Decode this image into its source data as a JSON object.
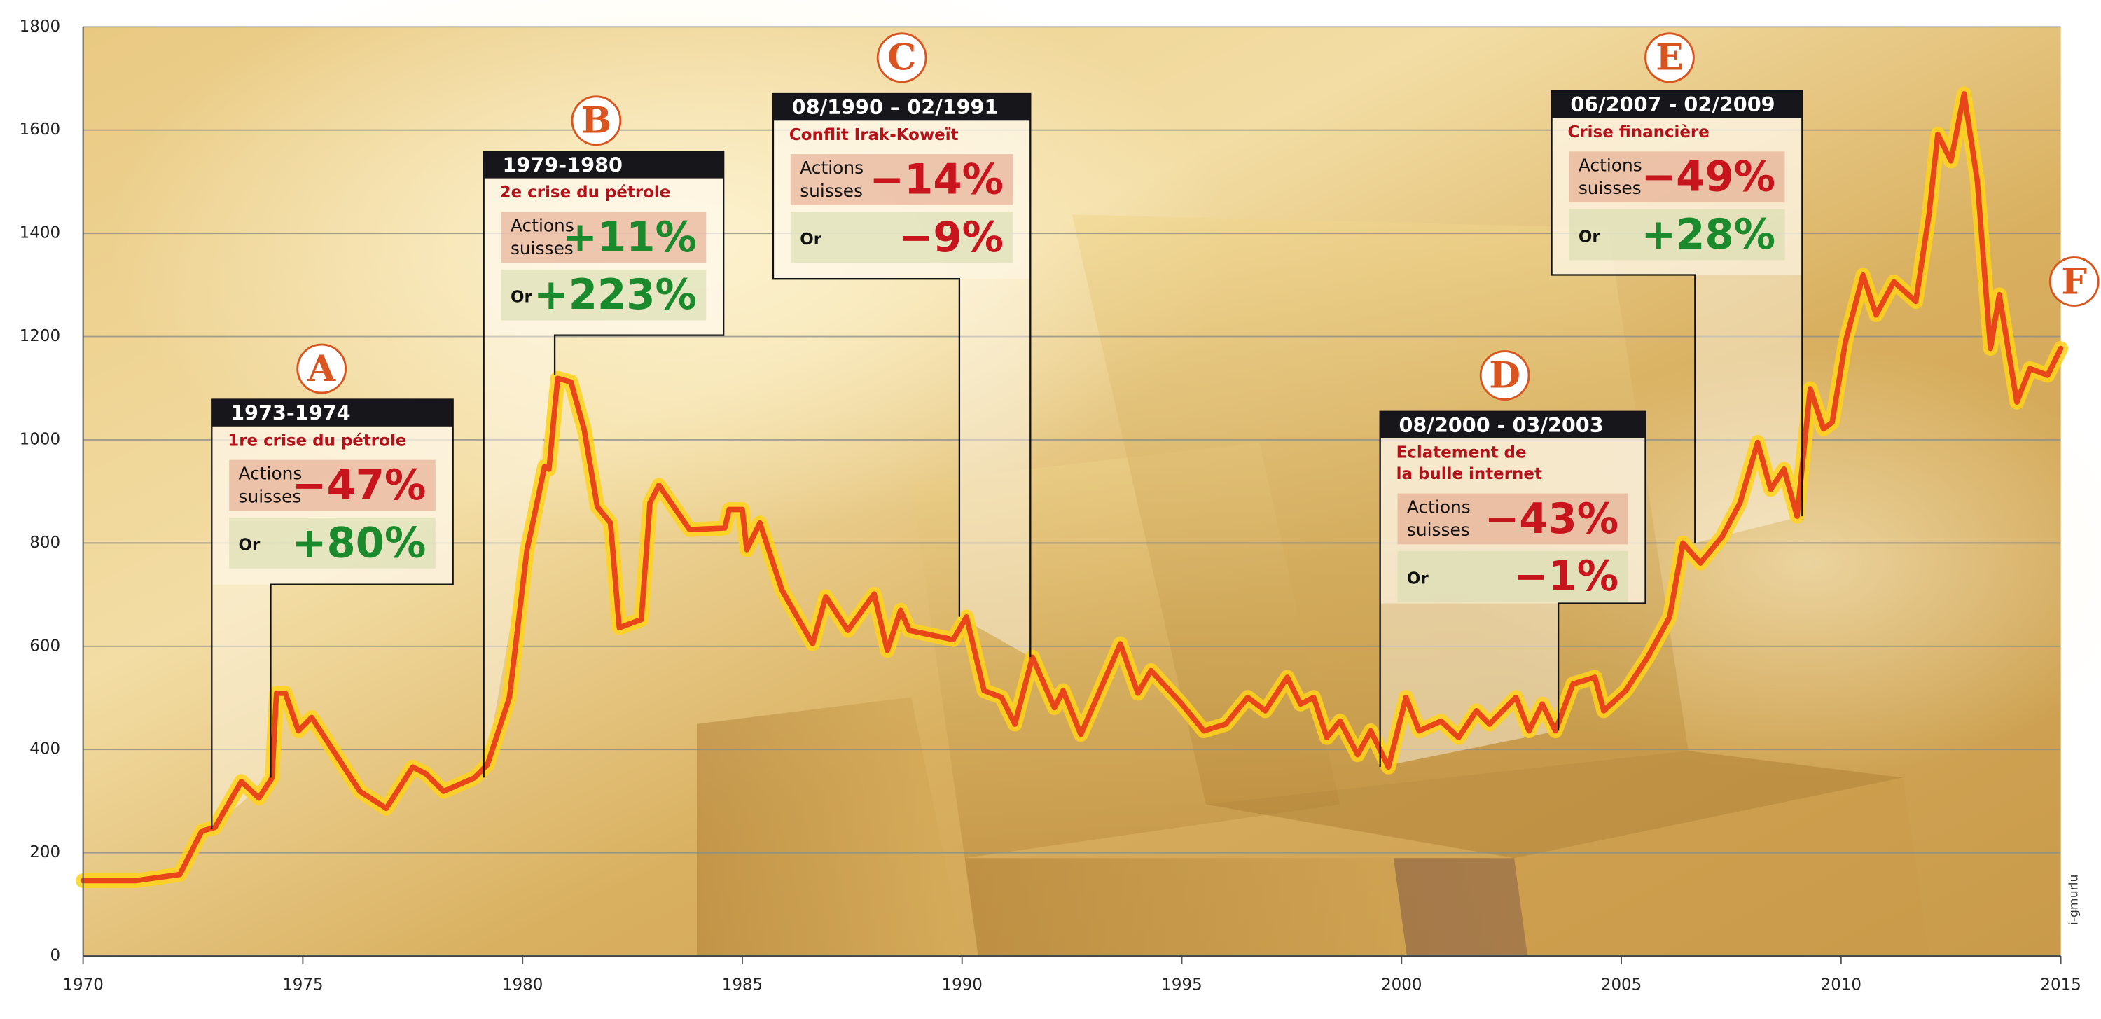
{
  "chart_data": {
    "type": "line",
    "x": [
      1970,
      1971.2,
      1972.2,
      1972.7,
      1973,
      1973.6,
      1974,
      1974.3,
      1974.4,
      1974.6,
      1974.9,
      1975.2,
      1975.9,
      1976.3,
      1976.9,
      1977.5,
      1977.8,
      1978.2,
      1978.9,
      1979.2,
      1979.7,
      1980.1,
      1980.2,
      1980.5,
      1980.6,
      1980.8,
      1981.1,
      1981.4,
      1981.7,
      1982,
      1982.2,
      1982.7,
      1982.9,
      1983.1,
      1983.8,
      1984.6,
      1984.7,
      1985,
      1985.1,
      1985.4,
      1985.9,
      1986.6,
      1986.9,
      1987.4,
      1988,
      1988.3,
      1988.6,
      1988.8,
      1989.8,
      1990.1,
      1990.5,
      1990.9,
      1991.2,
      1991.6,
      1992.1,
      1992.3,
      1992.7,
      1993.6,
      1994,
      1994.3,
      1995,
      1995.5,
      1996,
      1996.5,
      1996.9,
      1997.4,
      1997.7,
      1998,
      1998.3,
      1998.6,
      1999,
      1999.3,
      1999.7,
      2000.1,
      2000.4,
      2000.9,
      2001.3,
      2001.7,
      2002,
      2002.6,
      2002.9,
      2003.2,
      2003.5,
      2003.9,
      2004.4,
      2004.6,
      2005.1,
      2005.6,
      2006.1,
      2006.4,
      2006.8,
      2007.3,
      2007.7,
      2008.1,
      2008.4,
      2008.7,
      2009,
      2009.3,
      2009.6,
      2009.8,
      2010.1,
      2010.5,
      2010.8,
      2011.2,
      2011.7,
      2012,
      2012.2,
      2012.5,
      2012.8,
      2013.1,
      2013.4,
      2013.6,
      2014,
      2014.3,
      2014.7,
      2015
    ],
    "values": [
      146,
      146,
      158,
      242,
      249,
      338,
      306,
      345,
      509,
      509,
      436,
      462,
      371,
      319,
      286,
      366,
      353,
      319,
      345,
      371,
      501,
      787,
      826,
      948,
      943,
      1119,
      1112,
      1021,
      870,
      839,
      636,
      652,
      878,
      912,
      826,
      829,
      865,
      865,
      787,
      839,
      709,
      605,
      696,
      631,
      701,
      592,
      670,
      631,
      613,
      657,
      514,
      501,
      449,
      579,
      481,
      514,
      429,
      605,
      509,
      553,
      488,
      436,
      449,
      501,
      475,
      540,
      488,
      501,
      423,
      455,
      390,
      436,
      366,
      501,
      436,
      455,
      423,
      475,
      449,
      501,
      436,
      488,
      436,
      527,
      540,
      475,
      514,
      579,
      657,
      800,
      761,
      813,
      878,
      995,
      904,
      943,
      852,
      1099,
      1021,
      1034,
      1190,
      1319,
      1242,
      1306,
      1268,
      1436,
      1592,
      1540,
      1670,
      1501,
      1177,
      1281,
      1073,
      1138,
      1125,
      1177
    ],
    "color": "#e8461a",
    "glow_color": "#ffd21a",
    "xlim": [
      1970,
      2015
    ],
    "xticks": [
      1970,
      1975,
      1980,
      1985,
      1990,
      1995,
      2000,
      2005,
      2010,
      2015
    ],
    "ylim": [
      0,
      1800
    ],
    "yticks": [
      0,
      200,
      400,
      600,
      800,
      1000,
      1200,
      1400,
      1600,
      1800
    ],
    "grid": true,
    "annotations": [
      {
        "letter": "A",
        "period": "1973-1974",
        "event": [
          "1re crise du pétrole"
        ],
        "rows": [
          {
            "label": [
              "Actions",
              "suisses"
            ],
            "value": "−47%",
            "color": "#c8141c"
          },
          {
            "label": [
              "Or"
            ],
            "value": "+80%",
            "color": "#1b8a2c"
          }
        ]
      },
      {
        "letter": "B",
        "period": "1979-1980",
        "event": [
          "2e crise du pétrole"
        ],
        "rows": [
          {
            "label": [
              "Actions",
              "suisses"
            ],
            "value": "+11%",
            "color": "#1b8a2c"
          },
          {
            "label": [
              "Or"
            ],
            "value": "+223%",
            "color": "#1b8a2c"
          }
        ]
      },
      {
        "letter": "C",
        "period": "08/1990 – 02/1991",
        "event": [
          "Conflit Irak-Koweït"
        ],
        "rows": [
          {
            "label": [
              "Actions",
              "suisses"
            ],
            "value": "−14%",
            "color": "#c8141c"
          },
          {
            "label": [
              "Or"
            ],
            "value": "−9%",
            "color": "#c8141c"
          }
        ]
      },
      {
        "letter": "D",
        "period": "08/2000 - 03/2003",
        "event": [
          "Eclatement de",
          "la bulle internet"
        ],
        "rows": [
          {
            "label": [
              "Actions",
              "suisses"
            ],
            "value": "−43%",
            "color": "#c8141c"
          },
          {
            "label": [
              "Or"
            ],
            "value": "−1%",
            "color": "#c8141c"
          }
        ]
      },
      {
        "letter": "E",
        "period": "06/2007 - 02/2009",
        "event": [
          "Crise financière"
        ],
        "rows": [
          {
            "label": [
              "Actions",
              "suisses"
            ],
            "value": "−49%",
            "color": "#c8141c"
          },
          {
            "label": [
              "Or"
            ],
            "value": "+28%",
            "color": "#1b8a2c"
          }
        ]
      },
      {
        "letter": "F"
      }
    ],
    "credit": "i-gmurlu"
  }
}
